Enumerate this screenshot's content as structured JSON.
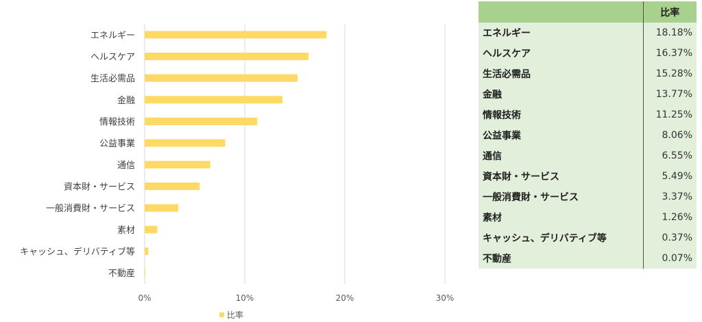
{
  "chart_data": {
    "type": "bar",
    "orientation": "horizontal",
    "categories": [
      "エネルギー",
      "ヘルスケア",
      "生活必需品",
      "金融",
      "情報技術",
      "公益事業",
      "通信",
      "資本財・サービス",
      "一般消費財・サービス",
      "素材",
      "キャッシュ、デリバティブ等",
      "不動産"
    ],
    "series": [
      {
        "name": "比率",
        "values": [
          18.18,
          16.37,
          15.28,
          13.77,
          11.25,
          8.06,
          6.55,
          5.49,
          3.37,
          1.26,
          0.37,
          0.07
        ]
      }
    ],
    "xlim": [
      0,
      30
    ],
    "xticks": [
      "0%",
      "10%",
      "20%",
      "30%"
    ],
    "grid": true,
    "legend": "bottom",
    "bar_color": "#ffd966",
    "grid_color": "#d9d9d9"
  },
  "table": {
    "header": [
      "",
      "比率"
    ],
    "rows": [
      [
        "エネルギー",
        "18.18%"
      ],
      [
        "ヘルスケア",
        "16.37%"
      ],
      [
        "生活必需品",
        "15.28%"
      ],
      [
        "金融",
        "13.77%"
      ],
      [
        "情報技術",
        "11.25%"
      ],
      [
        "公益事業",
        "8.06%"
      ],
      [
        "通信",
        "6.55%"
      ],
      [
        "資本財・サービス",
        "5.49%"
      ],
      [
        "一般消費財・サービス",
        "3.37%"
      ],
      [
        "素材",
        "1.26%"
      ],
      [
        "キャッシュ、デリバティブ等",
        "0.37%"
      ],
      [
        "不動産",
        "0.07%"
      ]
    ],
    "header_color": "#a9d18e",
    "row_color": "#e2efda"
  }
}
